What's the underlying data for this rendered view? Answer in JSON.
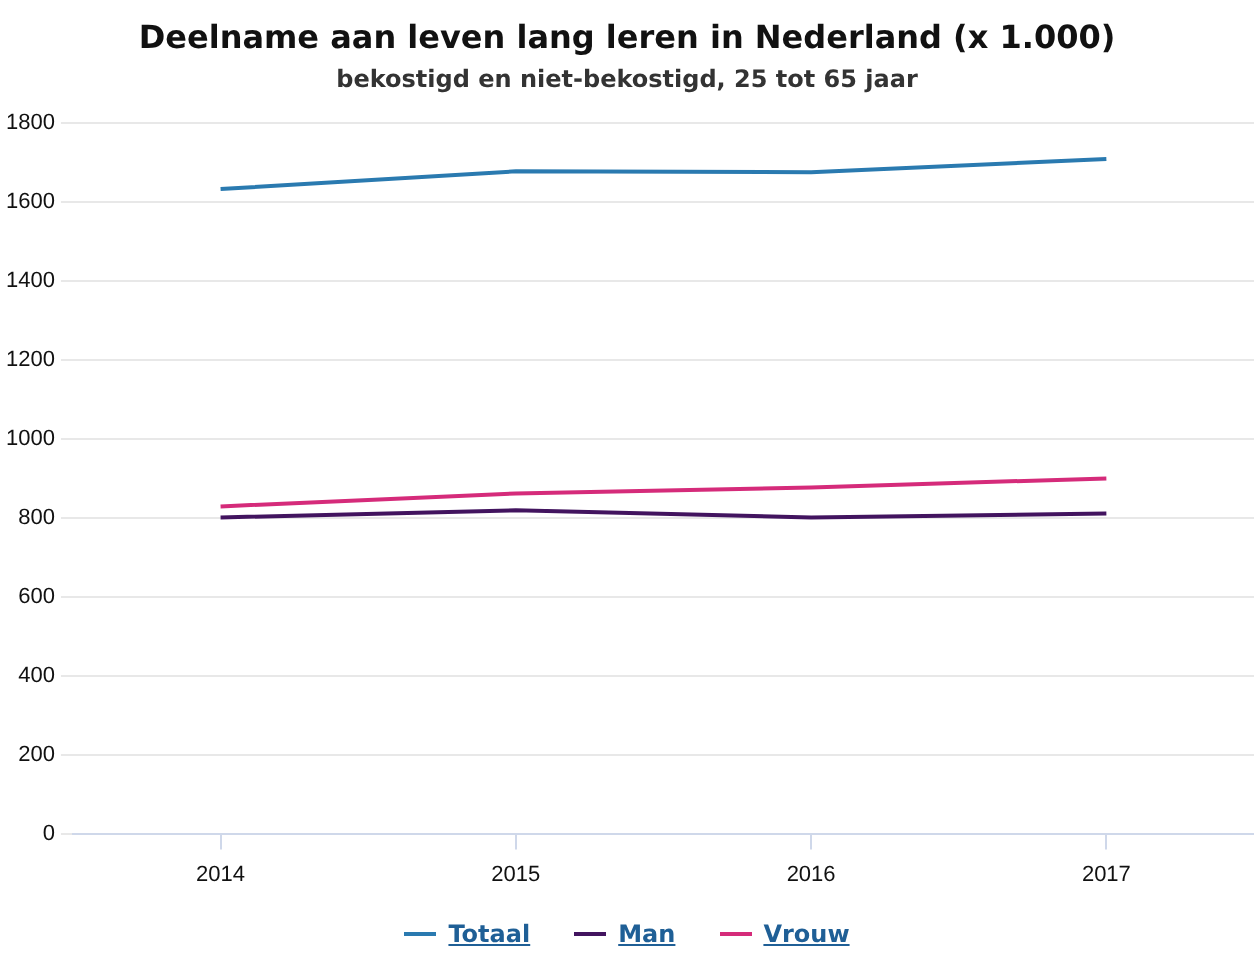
{
  "chart_data": {
    "type": "line",
    "title": "Deelname aan leven lang leren in Nederland (x 1.000)",
    "subtitle": "bekostigd en niet-bekostigd, 25 tot 65 jaar",
    "categories": [
      "2014",
      "2015",
      "2016",
      "2017"
    ],
    "series": [
      {
        "name": "Totaal",
        "color": "#2a7ab0",
        "values": [
          1633,
          1678,
          1676,
          1709
        ]
      },
      {
        "name": "Man",
        "color": "#42145f",
        "values": [
          801,
          819,
          801,
          811
        ]
      },
      {
        "name": "Vrouw",
        "color": "#d52b7a",
        "values": [
          829,
          862,
          877,
          900
        ]
      }
    ],
    "ylim": [
      0,
      1800
    ],
    "yticks": [
      0,
      200,
      400,
      600,
      800,
      1000,
      1200,
      1400,
      1600,
      1800
    ],
    "grid": "y",
    "legend": "bottom",
    "marker": "none",
    "line_style": "solid"
  }
}
